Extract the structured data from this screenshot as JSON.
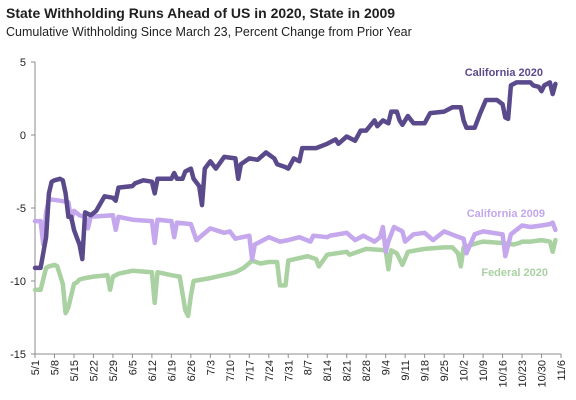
{
  "chart_data": {
    "type": "line",
    "title": "State Withholding Runs Ahead of US in 2020, State in 2009",
    "subtitle": "Cumulative Withholding Since March 23, Percent Change from Prior Year",
    "xlabel": "",
    "ylabel": "",
    "ylim": [
      -15,
      5
    ],
    "yticks": [
      5,
      0,
      -5,
      -10,
      -15
    ],
    "x_tick_labels": [
      "5/1",
      "5/8",
      "5/15",
      "5/22",
      "5/29",
      "6/5",
      "6/12",
      "6/19",
      "6/26",
      "7/3",
      "7/10",
      "7/17",
      "7/24",
      "7/31",
      "8/7",
      "8/14",
      "8/21",
      "8/28",
      "9/4",
      "9/11",
      "9/18",
      "9/25",
      "10/2",
      "10/9",
      "10/16",
      "10/23",
      "10/30",
      "11/6"
    ],
    "grid": false,
    "legend": "inline labels near line ends",
    "series": [
      {
        "name": "California 2020",
        "color": "#5b4a8b",
        "label_position": "top-right",
        "points": [
          [
            "5/1",
            -9.1
          ],
          [
            "5/3",
            -9.1
          ],
          [
            "5/5",
            -7.0
          ],
          [
            "5/6",
            -4.0
          ],
          [
            "5/7",
            -3.2
          ],
          [
            "5/8",
            -3.1
          ],
          [
            "5/10",
            -3.0
          ],
          [
            "5/11",
            -3.1
          ],
          [
            "5/12",
            -4.0
          ],
          [
            "5/13",
            -5.6
          ],
          [
            "5/14",
            -5.6
          ],
          [
            "5/15",
            -6.5
          ],
          [
            "5/16",
            -7.0
          ],
          [
            "5/17",
            -7.5
          ],
          [
            "5/18",
            -8.5
          ],
          [
            "5/19",
            -5.3
          ],
          [
            "5/21",
            -5.5
          ],
          [
            "5/23",
            -5.2
          ],
          [
            "5/26",
            -4.2
          ],
          [
            "5/29",
            -4.3
          ],
          [
            "5/30",
            -4.5
          ],
          [
            "5/31",
            -3.6
          ],
          [
            "6/5",
            -3.5
          ],
          [
            "6/6",
            -3.3
          ],
          [
            "6/9",
            -3.1
          ],
          [
            "6/12",
            -3.2
          ],
          [
            "6/13",
            -4.0
          ],
          [
            "6/14",
            -3.0
          ],
          [
            "6/19",
            -3.0
          ],
          [
            "6/20",
            -2.6
          ],
          [
            "6/21",
            -3.0
          ],
          [
            "6/23",
            -3.0
          ],
          [
            "6/24",
            -2.5
          ],
          [
            "6/26",
            -2.3
          ],
          [
            "6/27",
            -3.0
          ],
          [
            "6/29",
            -3.5
          ],
          [
            "6/30",
            -4.8
          ],
          [
            "7/1",
            -2.3
          ],
          [
            "7/3",
            -1.8
          ],
          [
            "7/5",
            -2.3
          ],
          [
            "7/8",
            -1.5
          ],
          [
            "7/12",
            -1.6
          ],
          [
            "7/13",
            -3.0
          ],
          [
            "7/14",
            -2.0
          ],
          [
            "7/17",
            -1.6
          ],
          [
            "7/20",
            -1.7
          ],
          [
            "7/23",
            -1.2
          ],
          [
            "7/26",
            -1.6
          ],
          [
            "7/27",
            -2.0
          ],
          [
            "7/30",
            -2.2
          ],
          [
            "7/31",
            -2.3
          ],
          [
            "8/2",
            -1.6
          ],
          [
            "8/4",
            -1.8
          ],
          [
            "8/5",
            -0.9
          ],
          [
            "8/10",
            -0.9
          ],
          [
            "8/14",
            -0.6
          ],
          [
            "8/17",
            -0.3
          ],
          [
            "8/18",
            -0.6
          ],
          [
            "8/21",
            -0.1
          ],
          [
            "8/24",
            -0.4
          ],
          [
            "8/26",
            0.3
          ],
          [
            "8/28",
            0.3
          ],
          [
            "8/31",
            1.0
          ],
          [
            "9/1",
            0.6
          ],
          [
            "9/3",
            1.0
          ],
          [
            "9/5",
            0.8
          ],
          [
            "9/6",
            1.6
          ],
          [
            "9/8",
            1.6
          ],
          [
            "9/9",
            1.0
          ],
          [
            "9/10",
            0.7
          ],
          [
            "9/12",
            1.3
          ],
          [
            "9/14",
            0.8
          ],
          [
            "9/18",
            0.8
          ],
          [
            "9/20",
            1.5
          ],
          [
            "9/25",
            1.6
          ],
          [
            "9/28",
            1.9
          ],
          [
            "10/1",
            1.9
          ],
          [
            "10/2",
            1.0
          ],
          [
            "10/3",
            0.5
          ],
          [
            "10/6",
            0.5
          ],
          [
            "10/8",
            1.5
          ],
          [
            "10/10",
            2.4
          ],
          [
            "10/14",
            2.4
          ],
          [
            "10/16",
            2.1
          ],
          [
            "10/17",
            1.2
          ],
          [
            "10/18",
            1.1
          ],
          [
            "10/19",
            3.4
          ],
          [
            "10/21",
            3.6
          ],
          [
            "10/26",
            3.6
          ],
          [
            "10/27",
            3.4
          ],
          [
            "10/29",
            3.3
          ],
          [
            "10/30",
            3.0
          ],
          [
            "10/31",
            3.4
          ],
          [
            "11/2",
            3.6
          ],
          [
            "11/3",
            2.8
          ],
          [
            "11/4",
            3.5
          ]
        ]
      },
      {
        "name": "California 2009",
        "color": "#c4a7ec",
        "label_position": "right",
        "points": [
          [
            "5/1",
            -5.9
          ],
          [
            "5/3",
            -5.9
          ],
          [
            "5/4",
            -7.5
          ],
          [
            "5/5",
            -5.3
          ],
          [
            "5/6",
            -4.4
          ],
          [
            "5/10",
            -4.5
          ],
          [
            "5/13",
            -4.6
          ],
          [
            "5/14",
            -5.8
          ],
          [
            "5/15",
            -5.2
          ],
          [
            "5/17",
            -5.5
          ],
          [
            "5/19",
            -5.6
          ],
          [
            "5/20",
            -6.4
          ],
          [
            "5/21",
            -5.6
          ],
          [
            "5/29",
            -5.5
          ],
          [
            "5/30",
            -6.5
          ],
          [
            "5/31",
            -5.6
          ],
          [
            "6/5",
            -5.8
          ],
          [
            "6/12",
            -5.9
          ],
          [
            "6/13",
            -7.4
          ],
          [
            "6/14",
            -5.8
          ],
          [
            "6/19",
            -5.9
          ],
          [
            "6/20",
            -7.0
          ],
          [
            "6/21",
            -6.0
          ],
          [
            "6/26",
            -6.1
          ],
          [
            "6/28",
            -7.2
          ],
          [
            "7/3",
            -6.4
          ],
          [
            "7/8",
            -6.7
          ],
          [
            "7/10",
            -6.6
          ],
          [
            "7/12",
            -7.1
          ],
          [
            "7/17",
            -6.9
          ],
          [
            "7/18",
            -8.5
          ],
          [
            "7/19",
            -7.5
          ],
          [
            "7/21",
            -7.3
          ],
          [
            "7/24",
            -7.0
          ],
          [
            "7/28",
            -7.3
          ],
          [
            "7/31",
            -7.2
          ],
          [
            "8/4",
            -7.0
          ],
          [
            "8/8",
            -7.3
          ],
          [
            "8/9",
            -6.9
          ],
          [
            "8/14",
            -7.0
          ],
          [
            "8/15",
            -6.9
          ],
          [
            "8/21",
            -6.7
          ],
          [
            "8/24",
            -7.2
          ],
          [
            "8/27",
            -6.9
          ],
          [
            "8/31",
            -7.3
          ],
          [
            "9/2",
            -7.0
          ],
          [
            "9/3",
            -6.3
          ],
          [
            "9/4",
            -8.0
          ],
          [
            "9/5",
            -7.3
          ],
          [
            "9/7",
            -6.3
          ],
          [
            "9/10",
            -6.6
          ],
          [
            "9/11",
            -7.3
          ],
          [
            "9/14",
            -6.8
          ],
          [
            "9/18",
            -6.7
          ],
          [
            "9/21",
            -7.2
          ],
          [
            "9/25",
            -6.6
          ],
          [
            "9/29",
            -6.9
          ],
          [
            "10/2",
            -7.1
          ],
          [
            "10/3",
            -8.1
          ],
          [
            "10/6",
            -6.8
          ],
          [
            "10/9",
            -6.6
          ],
          [
            "10/16",
            -6.8
          ],
          [
            "10/17",
            -8.3
          ],
          [
            "10/19",
            -6.8
          ],
          [
            "10/23",
            -6.2
          ],
          [
            "10/26",
            -6.3
          ],
          [
            "10/30",
            -6.2
          ],
          [
            "11/2",
            -6.1
          ],
          [
            "11/3",
            -6.0
          ],
          [
            "11/4",
            -6.5
          ]
        ]
      },
      {
        "name": "Federal 2020",
        "color": "#a9d1a1",
        "label_position": "right",
        "points": [
          [
            "5/1",
            -10.6
          ],
          [
            "5/3",
            -10.6
          ],
          [
            "5/5",
            -9.1
          ],
          [
            "5/6",
            -9.0
          ],
          [
            "5/8",
            -8.9
          ],
          [
            "5/9",
            -9.0
          ],
          [
            "5/11",
            -10.2
          ],
          [
            "5/12",
            -12.2
          ],
          [
            "5/13",
            -11.8
          ],
          [
            "5/15",
            -10.2
          ],
          [
            "5/16",
            -10.1
          ],
          [
            "5/17",
            -9.9
          ],
          [
            "5/19",
            -9.8
          ],
          [
            "5/22",
            -9.7
          ],
          [
            "5/27",
            -9.6
          ],
          [
            "5/28",
            -10.6
          ],
          [
            "5/29",
            -9.7
          ],
          [
            "5/31",
            -9.5
          ],
          [
            "6/5",
            -9.3
          ],
          [
            "6/12",
            -9.4
          ],
          [
            "6/13",
            -11.5
          ],
          [
            "6/14",
            -9.4
          ],
          [
            "6/19",
            -9.6
          ],
          [
            "6/22",
            -9.7
          ],
          [
            "6/24",
            -12.0
          ],
          [
            "6/25",
            -12.4
          ],
          [
            "6/26",
            -11.0
          ],
          [
            "6/27",
            -10.0
          ],
          [
            "7/3",
            -9.8
          ],
          [
            "7/10",
            -9.5
          ],
          [
            "7/12",
            -9.4
          ],
          [
            "7/15",
            -9.1
          ],
          [
            "7/18",
            -8.6
          ],
          [
            "7/21",
            -8.8
          ],
          [
            "7/24",
            -8.7
          ],
          [
            "7/27",
            -8.7
          ],
          [
            "7/28",
            -10.3
          ],
          [
            "7/30",
            -10.3
          ],
          [
            "7/31",
            -8.6
          ],
          [
            "8/7",
            -8.3
          ],
          [
            "8/10",
            -8.5
          ],
          [
            "8/11",
            -9.0
          ],
          [
            "8/14",
            -8.2
          ],
          [
            "8/21",
            -8.0
          ],
          [
            "8/22",
            -8.2
          ],
          [
            "8/28",
            -7.8
          ],
          [
            "9/4",
            -7.9
          ],
          [
            "9/5",
            -9.2
          ],
          [
            "9/6",
            -7.9
          ],
          [
            "9/8",
            -8.1
          ],
          [
            "9/10",
            -8.9
          ],
          [
            "9/12",
            -8.0
          ],
          [
            "9/18",
            -7.8
          ],
          [
            "9/25",
            -7.7
          ],
          [
            "9/28",
            -7.7
          ],
          [
            "9/30",
            -8.1
          ],
          [
            "10/1",
            -9.0
          ],
          [
            "10/2",
            -7.7
          ],
          [
            "10/7",
            -7.4
          ],
          [
            "10/9",
            -7.3
          ],
          [
            "10/16",
            -7.4
          ],
          [
            "10/20",
            -7.5
          ],
          [
            "10/22",
            -7.4
          ],
          [
            "10/23",
            -7.3
          ],
          [
            "10/26",
            -7.3
          ],
          [
            "10/30",
            -7.2
          ],
          [
            "11/2",
            -7.3
          ],
          [
            "11/3",
            -8.0
          ],
          [
            "11/4",
            -7.2
          ]
        ]
      }
    ]
  }
}
